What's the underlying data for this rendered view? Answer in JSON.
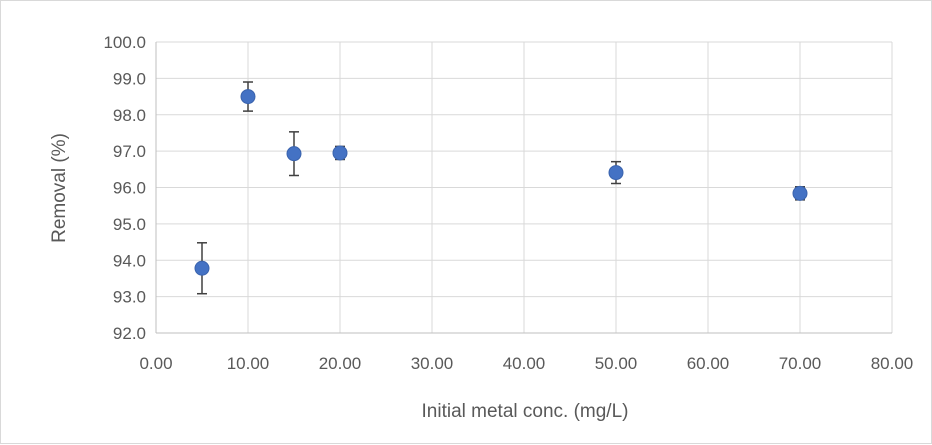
{
  "chart_data": {
    "type": "scatter",
    "title": "",
    "xlabel": "Initial metal conc. (mg/L)",
    "ylabel": "Removal (%)",
    "xlim": [
      0,
      80
    ],
    "ylim": [
      92,
      100
    ],
    "x_ticks": [
      0,
      10,
      20,
      30,
      40,
      50,
      60,
      70,
      80
    ],
    "x_tick_labels": [
      "0.00",
      "10.00",
      "20.00",
      "30.00",
      "40.00",
      "50.00",
      "60.00",
      "70.00",
      "80.00"
    ],
    "y_ticks": [
      92,
      93,
      94,
      95,
      96,
      97,
      98,
      99,
      100
    ],
    "y_tick_labels": [
      "92.0",
      "93.0",
      "94.0",
      "95.0",
      "96.0",
      "97.0",
      "98.0",
      "99.0",
      "100.0"
    ],
    "grid": true,
    "legend": "none",
    "marker_color": "#4472C4",
    "errorbar_color": "#404040",
    "series": [
      {
        "points": [
          {
            "x": 5,
            "y": 93.78,
            "err": 0.7
          },
          {
            "x": 10,
            "y": 98.5,
            "err": 0.4
          },
          {
            "x": 15,
            "y": 96.93,
            "err": 0.6
          },
          {
            "x": 20,
            "y": 96.95,
            "err": 0.18
          },
          {
            "x": 50,
            "y": 96.41,
            "err": 0.3
          },
          {
            "x": 70,
            "y": 95.84,
            "err": 0.18
          }
        ]
      }
    ]
  }
}
